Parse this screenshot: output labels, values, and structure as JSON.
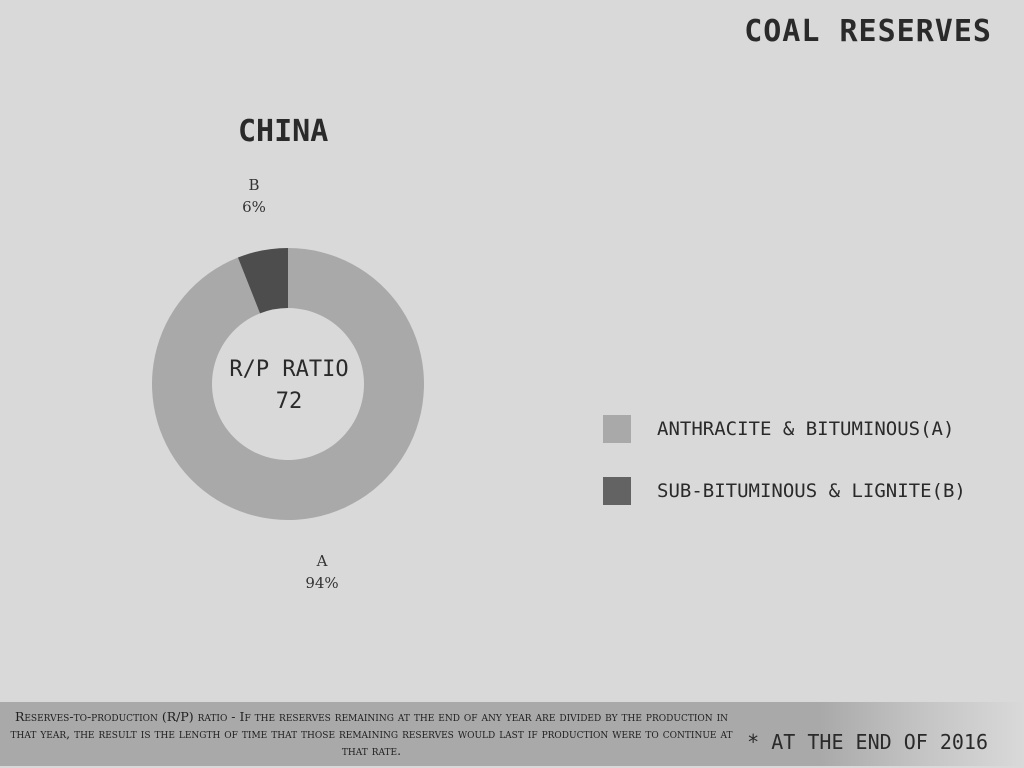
{
  "page_title": "COAL RESERVES",
  "chart_data": {
    "type": "pie",
    "title": "CHINA",
    "donut": true,
    "categories": [
      "A",
      "B"
    ],
    "values": [
      94,
      6
    ],
    "slice_labels": [
      {
        "letter": "A",
        "percent": "94%"
      },
      {
        "letter": "B",
        "percent": "6%"
      }
    ],
    "center": {
      "label": "R/P RATIO",
      "value": "72"
    },
    "colors": [
      "#a9a9a9",
      "#4d4d4d"
    ],
    "legend": [
      {
        "label": "ANTHRACITE & BITUMINOUS(A)",
        "color": "#a9a9a9"
      },
      {
        "label": "SUB-BITUMINOUS & LIGNITE(B)",
        "color": "#636363"
      }
    ],
    "legend_placement": "right"
  },
  "footnote": "Reserves-to-production (R/P) ratio - If the reserves remaining at the end of any year are divided by the production in that year, the result is the length of time that those remaining reserves would last if production were to continue at that rate.",
  "as_of_note": "* AT THE END OF 2016"
}
